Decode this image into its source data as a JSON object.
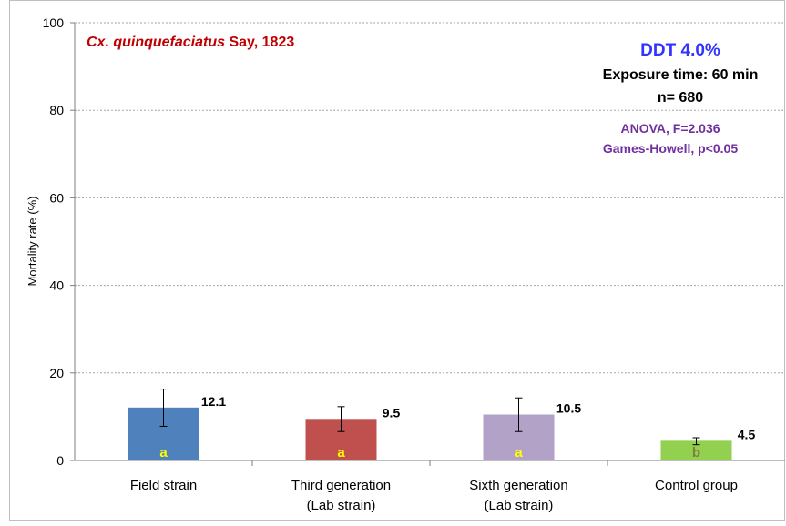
{
  "chart_data": {
    "type": "bar",
    "ylabel": "Mortality rate (%)",
    "ylim": [
      0,
      100
    ],
    "yticks": [
      0,
      20,
      40,
      60,
      80,
      100
    ],
    "grid": true,
    "categories": [
      [
        "Field strain"
      ],
      [
        "Third generation",
        "(Lab strain)"
      ],
      [
        "Sixth generation",
        "(Lab strain)"
      ],
      [
        "Control group"
      ]
    ],
    "values": [
      12.1,
      9.5,
      10.5,
      4.5
    ],
    "value_labels": [
      "12.1",
      "9.5",
      "10.5",
      "4.5"
    ],
    "errors": [
      [
        7.8,
        16.3
      ],
      [
        6.6,
        12.3
      ],
      [
        6.6,
        14.3
      ],
      [
        3.6,
        5.2
      ]
    ],
    "letters": [
      "a",
      "a",
      "a",
      "b"
    ],
    "bar_colors": [
      "#4f81bd",
      "#c0504d",
      "#b3a2c7",
      "#92d050"
    ],
    "letter_colors": [
      "#ffff00",
      "#ffff00",
      "#ffff00",
      "#7f7f3f"
    ]
  },
  "annotations": {
    "species_italic": "Cx. quinquefaciatus",
    "species_rest": " Say, 1823",
    "insecticide": "DDT 4.0%",
    "exposure": "Exposure time:  60 min",
    "n": "n= 680",
    "anova": "ANOVA, F=2.036",
    "posthoc": "Games-Howell, p<0.05"
  },
  "colors": {
    "species": "#c00000",
    "insecticide": "#3333ff",
    "stats": "#7030a0",
    "grid": "#a6a6a6",
    "axis": "#7f7f7f"
  }
}
